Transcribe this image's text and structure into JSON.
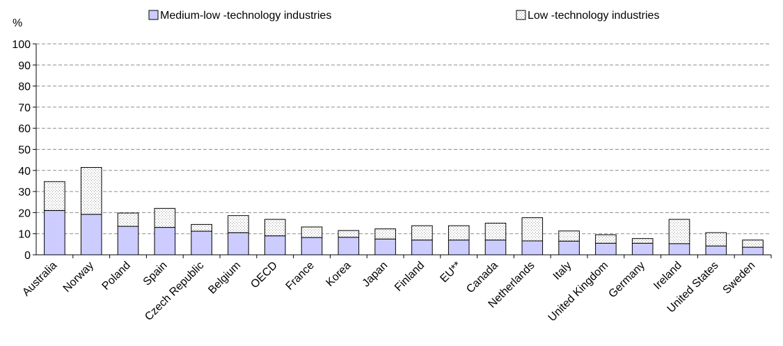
{
  "chart_data": {
    "type": "bar",
    "stacked": true,
    "y_unit_label": "%",
    "title": "",
    "xlabel": "",
    "ylabel": "",
    "ylim": [
      0,
      100
    ],
    "yticks": [
      0,
      10,
      20,
      30,
      40,
      50,
      60,
      70,
      80,
      90,
      100
    ],
    "grid": "horizontal dashed",
    "legend_position": "top",
    "categories": [
      "Australia",
      "Norway",
      "Poland",
      "Spain",
      "Czech Republic",
      "Belgium",
      "OECD",
      "France",
      "Korea",
      "Japan",
      "Finland",
      "EU**",
      "Canada",
      "Netherlands",
      "Italy",
      "United Kingdom",
      "Germany",
      "Ireland",
      "United States",
      "Sweden"
    ],
    "series": [
      {
        "name": "Medium-low -technology industries",
        "color": "#ccccff",
        "values": [
          21,
          19.2,
          13.5,
          13,
          11.2,
          10.5,
          9,
          8.2,
          8.3,
          7.5,
          7,
          7,
          7,
          6.6,
          6.5,
          5.5,
          5.5,
          5.3,
          4.2,
          3.6
        ]
      },
      {
        "name": "Low -technology industries",
        "color": "#ffffff",
        "pattern": "dotted",
        "values": [
          13.7,
          22.2,
          6.3,
          9,
          3.2,
          8.1,
          7.8,
          5,
          3.2,
          4.8,
          6.8,
          6.8,
          8,
          11,
          4.8,
          4,
          2.2,
          11.5,
          6.3,
          3.4
        ]
      }
    ]
  }
}
